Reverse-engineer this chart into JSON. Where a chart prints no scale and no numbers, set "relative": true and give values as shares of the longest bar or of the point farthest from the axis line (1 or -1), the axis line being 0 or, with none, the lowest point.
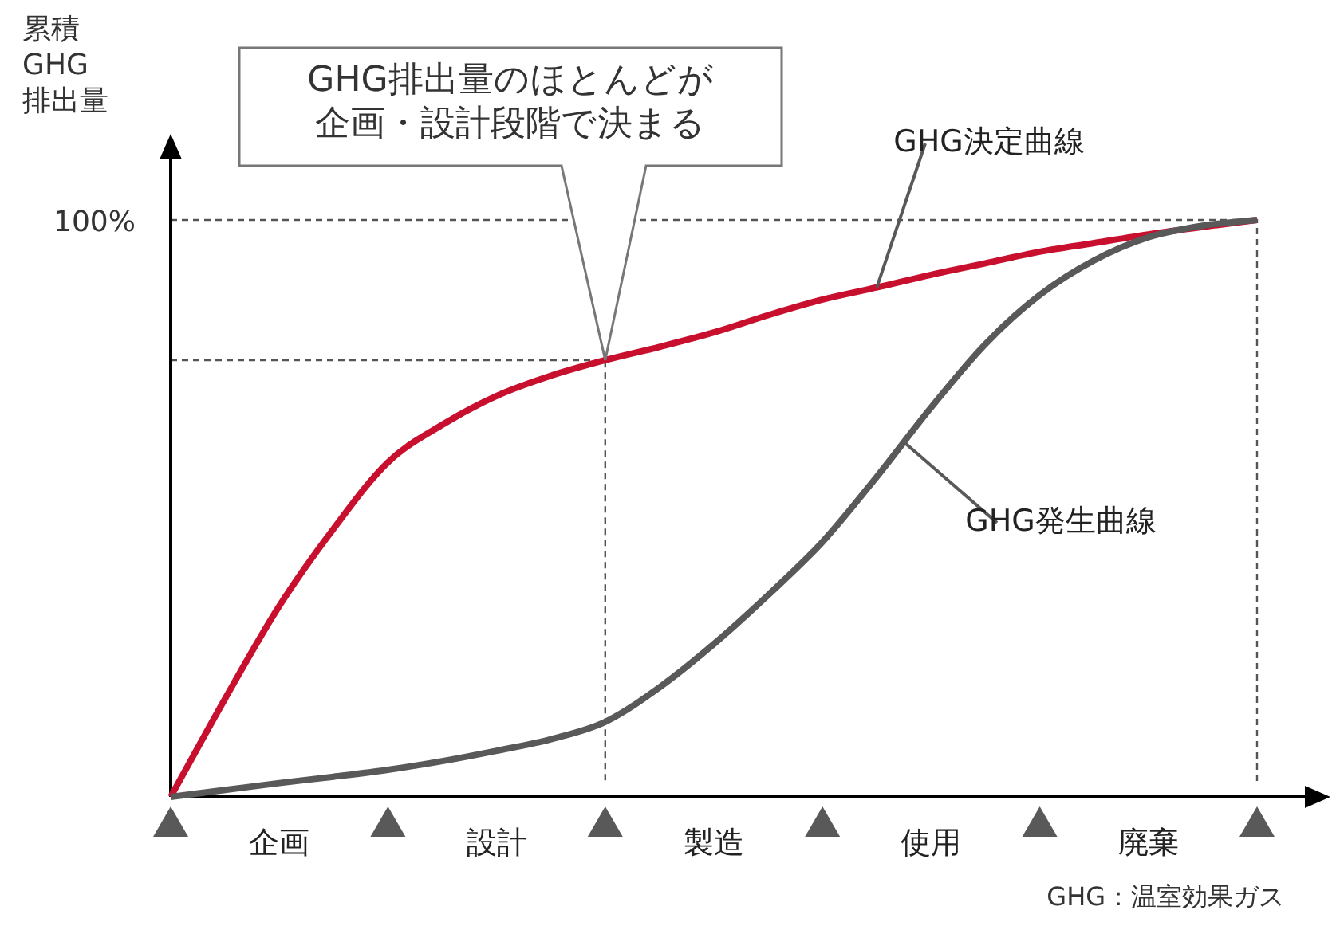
{
  "chart_data": {
    "type": "line",
    "relative": true,
    "ylabel": "累積GHG排出量",
    "categories": [
      null,
      null,
      "企画",
      null,
      null,
      null,
      "設計",
      null,
      null,
      null,
      "製造",
      null,
      null,
      null,
      "使用",
      null,
      null,
      null,
      "廃棄",
      null,
      null
    ],
    "series": [
      {
        "name": "GHG決定曲線",
        "color": "#c8102e",
        "values": [
          0,
          0.17,
          0.331,
          0.465,
          0.58,
          0.645,
          0.695,
          0.73,
          0.757,
          0.78,
          0.805,
          0.835,
          0.862,
          0.883,
          0.905,
          0.925,
          0.945,
          0.96,
          0.975,
          0.988,
          1
        ]
      },
      {
        "name": "GHG発生曲線",
        "color": "#595959",
        "values": [
          0,
          0.012,
          0.024,
          0.035,
          0.047,
          0.062,
          0.08,
          0.1,
          0.13,
          0.19,
          0.265,
          0.35,
          0.442,
          0.555,
          0.675,
          0.785,
          0.87,
          0.93,
          0.97,
          0.99,
          1
        ]
      }
    ],
    "ref_lines": [
      {
        "axis": "y",
        "value": 1,
        "label": "100%"
      },
      {
        "axis": "y",
        "value": 0.757
      }
    ],
    "annotations": [
      "GHG排出量のほとんどが企画・設計段階で決まる",
      "GHG：温室効果ガス"
    ],
    "legend": false,
    "grid": false,
    "marker": "none",
    "line_style": "solid"
  }
}
